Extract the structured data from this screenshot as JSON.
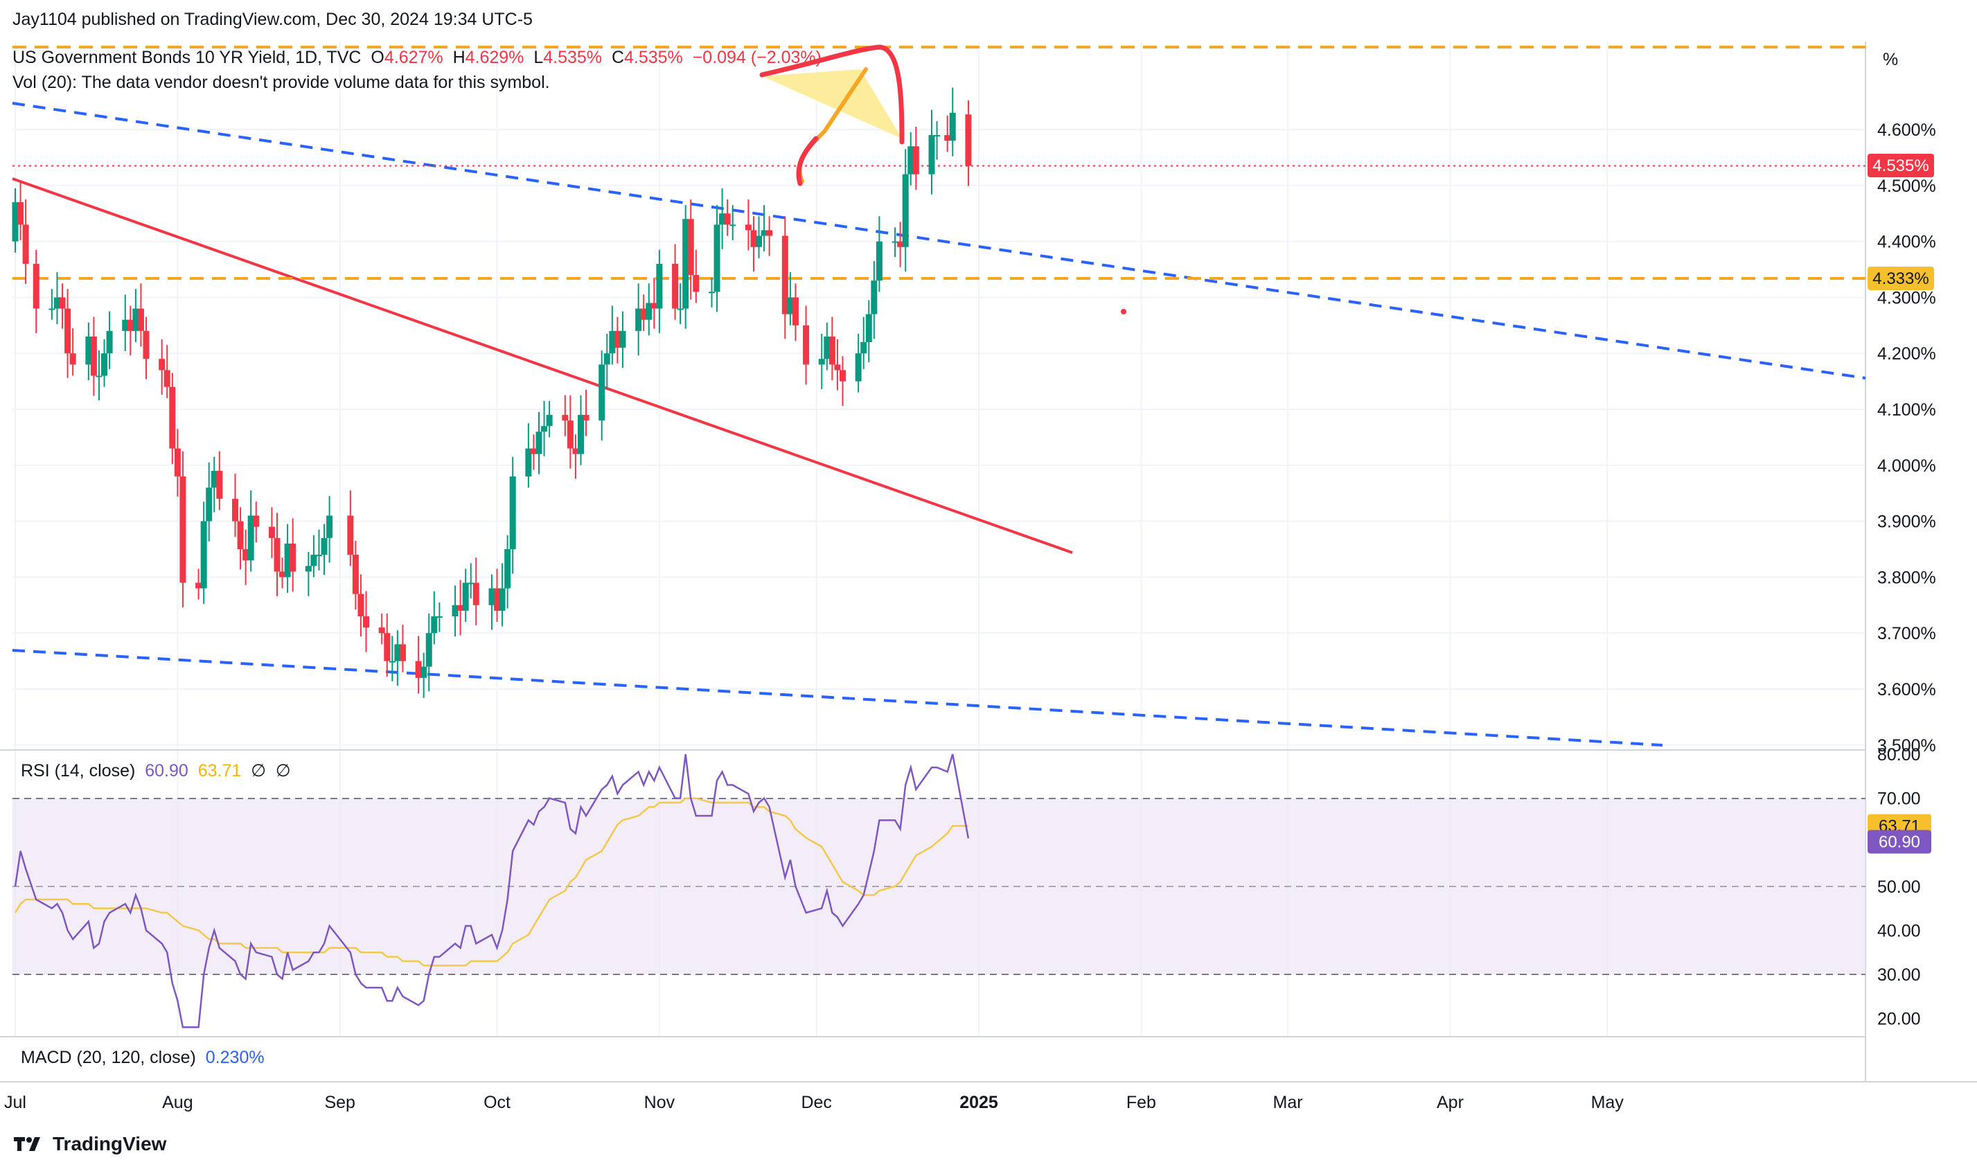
{
  "header": {
    "published": "Jay1104 published on TradingView.com, Dec 30, 2024 19:34 UTC-5",
    "symbol": "US Government Bonds 10 YR Yield, 1D, TVC",
    "o_label": "O",
    "o_value": "4.627%",
    "h_label": "H",
    "h_value": "4.629%",
    "l_label": "L",
    "l_value": "4.535%",
    "c_label": "C",
    "c_value": "4.535%",
    "change": "−0.094 (−2.03%)",
    "vol_note": "Vol (20): The data vendor doesn't provide volume data for this symbol."
  },
  "price_axis": {
    "unit": "%",
    "ticks": [
      "4.600%",
      "4.500%",
      "4.400%",
      "4.300%",
      "4.200%",
      "4.100%",
      "4.000%",
      "3.900%",
      "3.800%",
      "3.700%",
      "3.600%",
      "3.500%"
    ],
    "last_price_label": "4.535%",
    "level_label": "4.333%"
  },
  "rsi": {
    "title": "RSI (14, close)",
    "value": "60.90",
    "ma_value": "63.71",
    "extra1": "∅",
    "extra2": "∅",
    "ticks": [
      "80.00",
      "70.00",
      "63.71",
      "60.90",
      "50.00",
      "40.00",
      "30.00",
      "20.00"
    ]
  },
  "macd": {
    "title": "MACD (20, 120, close)",
    "value": "0.230%"
  },
  "time_axis": [
    "Jul",
    "Aug",
    "Sep",
    "Oct",
    "Nov",
    "Dec",
    "2025",
    "Feb",
    "Mar",
    "Apr",
    "May"
  ],
  "brand": "TradingView",
  "colors": {
    "up": "#089981",
    "down": "#f23645",
    "trend": "#f23645",
    "channel": "#2962ff",
    "level": "#f5a623",
    "rsi": "#7e57c2",
    "rsi_ma": "#f2c94c"
  },
  "chart_data": [
    {
      "type": "candlestick",
      "title": "US Government Bonds 10 YR Yield, 1D, TVC",
      "ylabel": "%",
      "ylim": [
        3.5,
        4.65
      ],
      "x_range": [
        "2024-07-01",
        "2025-05-31"
      ],
      "dates": [
        "2024-07-01",
        "2024-07-02",
        "2024-07-03",
        "2024-07-05",
        "2024-07-08",
        "2024-07-09",
        "2024-07-10",
        "2024-07-11",
        "2024-07-12",
        "2024-07-15",
        "2024-07-16",
        "2024-07-17",
        "2024-07-18",
        "2024-07-19",
        "2024-07-22",
        "2024-07-23",
        "2024-07-24",
        "2024-07-25",
        "2024-07-26",
        "2024-07-29",
        "2024-07-30",
        "2024-07-31",
        "2024-08-01",
        "2024-08-02",
        "2024-08-05",
        "2024-08-06",
        "2024-08-07",
        "2024-08-08",
        "2024-08-09",
        "2024-08-12",
        "2024-08-13",
        "2024-08-14",
        "2024-08-15",
        "2024-08-16",
        "2024-08-19",
        "2024-08-20",
        "2024-08-21",
        "2024-08-22",
        "2024-08-23",
        "2024-08-26",
        "2024-08-27",
        "2024-08-28",
        "2024-08-29",
        "2024-08-30",
        "2024-09-03",
        "2024-09-04",
        "2024-09-05",
        "2024-09-06",
        "2024-09-09",
        "2024-09-10",
        "2024-09-11",
        "2024-09-12",
        "2024-09-13",
        "2024-09-16",
        "2024-09-17",
        "2024-09-18",
        "2024-09-19",
        "2024-09-20",
        "2024-09-23",
        "2024-09-24",
        "2024-09-25",
        "2024-09-26",
        "2024-09-27",
        "2024-09-30",
        "2024-10-01",
        "2024-10-02",
        "2024-10-03",
        "2024-10-04",
        "2024-10-07",
        "2024-10-08",
        "2024-10-09",
        "2024-10-10",
        "2024-10-11",
        "2024-10-14",
        "2024-10-15",
        "2024-10-16",
        "2024-10-17",
        "2024-10-18",
        "2024-10-21",
        "2024-10-22",
        "2024-10-23",
        "2024-10-24",
        "2024-10-25",
        "2024-10-28",
        "2024-10-29",
        "2024-10-30",
        "2024-10-31",
        "2024-11-01",
        "2024-11-04",
        "2024-11-05",
        "2024-11-06",
        "2024-11-07",
        "2024-11-08",
        "2024-11-11",
        "2024-11-12",
        "2024-11-13",
        "2024-11-14",
        "2024-11-15",
        "2024-11-18",
        "2024-11-19",
        "2024-11-20",
        "2024-11-21",
        "2024-11-22",
        "2024-11-25",
        "2024-11-26",
        "2024-11-27",
        "2024-11-29",
        "2024-12-02",
        "2024-12-03",
        "2024-12-04",
        "2024-12-05",
        "2024-12-06",
        "2024-12-09",
        "2024-12-10",
        "2024-12-11",
        "2024-12-12",
        "2024-12-13",
        "2024-12-16",
        "2024-12-17",
        "2024-12-18",
        "2024-12-19",
        "2024-12-20",
        "2024-12-23",
        "2024-12-24",
        "2024-12-26",
        "2024-12-27",
        "2024-12-30"
      ],
      "close": [
        4.47,
        4.43,
        4.36,
        4.28,
        4.28,
        4.3,
        4.28,
        4.2,
        4.18,
        4.23,
        4.16,
        4.16,
        4.2,
        4.24,
        4.26,
        4.24,
        4.28,
        4.24,
        4.19,
        4.17,
        4.14,
        4.03,
        3.98,
        3.79,
        3.78,
        3.9,
        3.96,
        3.99,
        3.94,
        3.9,
        3.85,
        3.83,
        3.91,
        3.89,
        3.87,
        3.81,
        3.8,
        3.86,
        3.81,
        3.82,
        3.84,
        3.84,
        3.87,
        3.91,
        3.84,
        3.77,
        3.73,
        3.71,
        3.7,
        3.65,
        3.65,
        3.68,
        3.65,
        3.62,
        3.64,
        3.7,
        3.73,
        3.73,
        3.75,
        3.74,
        3.79,
        3.79,
        3.75,
        3.78,
        3.74,
        3.78,
        3.85,
        3.98,
        4.03,
        4.02,
        4.06,
        4.07,
        4.09,
        4.08,
        4.03,
        4.02,
        4.09,
        4.08,
        4.18,
        4.2,
        4.24,
        4.21,
        4.24,
        4.28,
        4.26,
        4.29,
        4.28,
        4.36,
        4.28,
        4.28,
        4.44,
        4.34,
        4.31,
        4.31,
        4.43,
        4.45,
        4.43,
        4.43,
        4.42,
        4.39,
        4.41,
        4.42,
        4.41,
        4.27,
        4.3,
        4.25,
        4.18,
        4.19,
        4.23,
        4.18,
        4.17,
        4.15,
        4.2,
        4.22,
        4.27,
        4.33,
        4.4,
        4.4,
        4.39,
        4.52,
        4.57,
        4.52,
        4.59,
        4.59,
        4.58,
        4.63,
        4.535
      ],
      "open": [
        4.4,
        4.47,
        4.43,
        4.36,
        4.28,
        4.28,
        4.3,
        4.28,
        4.2,
        4.18,
        4.23,
        4.16,
        4.16,
        4.2,
        4.24,
        4.26,
        4.24,
        4.28,
        4.24,
        4.19,
        4.17,
        4.14,
        4.03,
        3.98,
        3.79,
        3.78,
        3.9,
        3.96,
        3.99,
        3.94,
        3.9,
        3.85,
        3.83,
        3.91,
        3.89,
        3.87,
        3.81,
        3.8,
        3.86,
        3.81,
        3.82,
        3.84,
        3.84,
        3.87,
        3.91,
        3.84,
        3.77,
        3.73,
        3.71,
        3.7,
        3.65,
        3.65,
        3.68,
        3.65,
        3.62,
        3.64,
        3.7,
        3.73,
        3.73,
        3.75,
        3.74,
        3.79,
        3.79,
        3.75,
        3.78,
        3.74,
        3.78,
        3.85,
        3.98,
        4.03,
        4.02,
        4.06,
        4.07,
        4.09,
        4.08,
        4.03,
        4.02,
        4.09,
        4.08,
        4.18,
        4.2,
        4.24,
        4.21,
        4.24,
        4.28,
        4.26,
        4.29,
        4.28,
        4.36,
        4.28,
        4.28,
        4.44,
        4.34,
        4.31,
        4.31,
        4.43,
        4.45,
        4.43,
        4.43,
        4.42,
        4.39,
        4.41,
        4.42,
        4.41,
        4.27,
        4.3,
        4.25,
        4.18,
        4.19,
        4.23,
        4.18,
        4.17,
        4.15,
        4.2,
        4.22,
        4.27,
        4.33,
        4.4,
        4.4,
        4.39,
        4.52,
        4.57,
        4.52,
        4.59,
        4.59,
        4.58,
        4.627
      ],
      "rsi": [
        50,
        58,
        54,
        47,
        45,
        46,
        44,
        40,
        38,
        42,
        36,
        37,
        42,
        44,
        46,
        44,
        48,
        45,
        40,
        37,
        35,
        28,
        24,
        18,
        18,
        30,
        36,
        40,
        36,
        33,
        30,
        29,
        37,
        35,
        34,
        30,
        29,
        35,
        31,
        33,
        35,
        35,
        37,
        41,
        35,
        30,
        28,
        27,
        27,
        24,
        24,
        27,
        25,
        23,
        24,
        30,
        34,
        34,
        37,
        36,
        41,
        41,
        37,
        39,
        36,
        40,
        47,
        58,
        65,
        64,
        67,
        68,
        70,
        69,
        63,
        62,
        68,
        66,
        72,
        73,
        75,
        71,
        73,
        76,
        73,
        76,
        74,
        77,
        70,
        70,
        80,
        70,
        66,
        66,
        74,
        76,
        73,
        73,
        71,
        67,
        69,
        70,
        68,
        52,
        56,
        50,
        44,
        45,
        49,
        44,
        43,
        41,
        46,
        48,
        53,
        58,
        65,
        65,
        63,
        73,
        77,
        72,
        77,
        77,
        76,
        80,
        60.9
      ],
      "rsi_ma": [
        44,
        46,
        47,
        47,
        47,
        47,
        47,
        47,
        46,
        46,
        45,
        45,
        45,
        45,
        45,
        45,
        45,
        45,
        45,
        44,
        44,
        43,
        42,
        41,
        40,
        39,
        38,
        38,
        37,
        37,
        37,
        36,
        36,
        36,
        36,
        36,
        35,
        35,
        35,
        35,
        35,
        35,
        35,
        36,
        36,
        36,
        35,
        35,
        35,
        34,
        34,
        34,
        33,
        33,
        32,
        32,
        32,
        32,
        32,
        32,
        32,
        33,
        33,
        33,
        33,
        34,
        35,
        37,
        39,
        41,
        43,
        45,
        47,
        49,
        51,
        52,
        54,
        56,
        58,
        60,
        62,
        64,
        65,
        66,
        67,
        68,
        68,
        69,
        69,
        69,
        70,
        70,
        70,
        69,
        69,
        69,
        69,
        69,
        69,
        68,
        68,
        68,
        67,
        66,
        65,
        63,
        61,
        59,
        57,
        55,
        53,
        51,
        49,
        48,
        48,
        48,
        49,
        50,
        51,
        53,
        55,
        57,
        59,
        60,
        62,
        63.71,
        63.71
      ]
    }
  ]
}
